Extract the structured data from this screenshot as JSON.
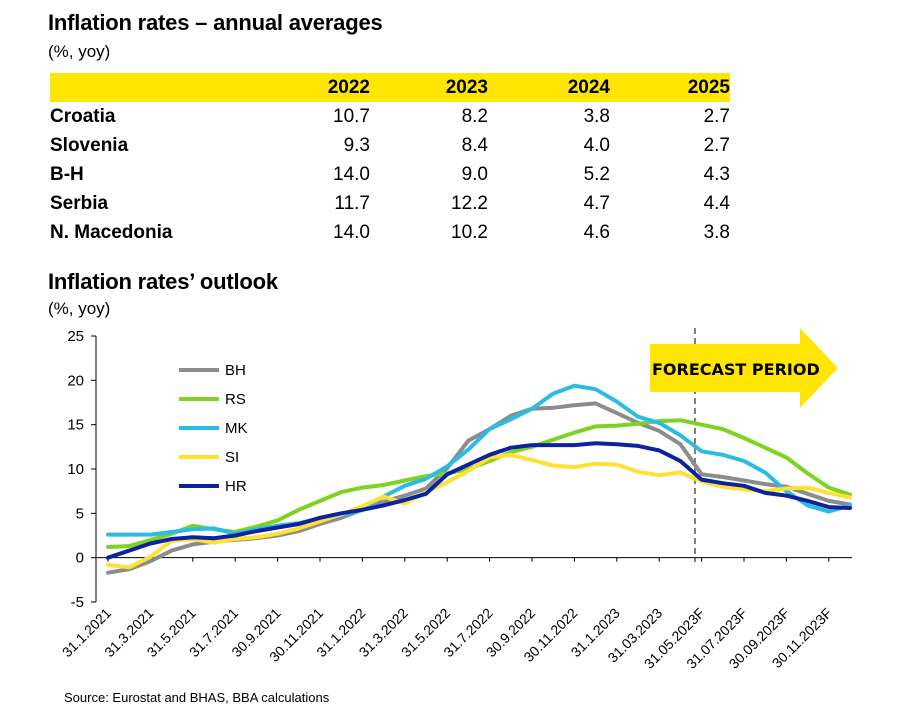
{
  "table_section": {
    "title": "Inflation rates – annual averages",
    "unit": "(%, yoy)",
    "years": [
      "2022",
      "2023",
      "2024",
      "2025"
    ],
    "rows": [
      {
        "country": "Croatia",
        "values": [
          "10.7",
          "8.2",
          "3.8",
          "2.7"
        ]
      },
      {
        "country": "Slovenia",
        "values": [
          "9.3",
          "8.4",
          "4.0",
          "2.7"
        ]
      },
      {
        "country": "B-H",
        "values": [
          "14.0",
          "9.0",
          "5.2",
          "4.3"
        ]
      },
      {
        "country": "Serbia",
        "values": [
          "11.7",
          "12.2",
          "4.7",
          "4.4"
        ]
      },
      {
        "country": "N. Macedonia",
        "values": [
          "14.0",
          "10.2",
          "4.6",
          "3.8"
        ]
      }
    ]
  },
  "chart_section": {
    "title": "Inflation rates’ outlook",
    "unit": "(%, yoy)"
  },
  "source": "Source: Eurostat and BHAS, BBA calculations",
  "chart_data": {
    "type": "line",
    "title": "Inflation rates’ outlook",
    "ylim": [
      -5,
      25
    ],
    "yticks": [
      "-5",
      "0",
      "5",
      "10",
      "15",
      "20",
      "25"
    ],
    "x_tick_labels": [
      "31.1.2021",
      "31.3.2021",
      "31.5.2021",
      "31.7.2021",
      "30.9.2021",
      "30.11.2021",
      "31.1.2022",
      "31.3.2022",
      "31.5.2022",
      "31.7.2022",
      "30.9.2022",
      "30.11.2022",
      "31.1.2023",
      "31.03.2023",
      "31.05.2023F",
      "31.07.2023F",
      "30.09.2023F",
      "30.11.2023F"
    ],
    "x_points": 36,
    "forecast_start_index": 28,
    "forecast_label": "FORECAST PERIOD",
    "legend_position": "upper-left",
    "grid": false,
    "series": [
      {
        "name": "BH",
        "color": "#8c8c8c",
        "values": [
          -1.7,
          -1.3,
          -0.4,
          0.8,
          1.5,
          1.8,
          2.0,
          2.2,
          2.5,
          3.0,
          3.8,
          4.5,
          5.4,
          6.3,
          7.0,
          7.8,
          10.1,
          13.2,
          14.5,
          16.0,
          16.8,
          16.9,
          17.2,
          17.4,
          16.3,
          15.2,
          14.3,
          12.8,
          9.4,
          9.1,
          8.7,
          8.3,
          8.0,
          7.2,
          6.4,
          6.0
        ]
      },
      {
        "name": "RS",
        "color": "#7ed321",
        "values": [
          1.2,
          1.3,
          2.0,
          2.7,
          3.6,
          3.2,
          2.9,
          3.5,
          4.2,
          5.4,
          6.4,
          7.4,
          7.9,
          8.2,
          8.7,
          9.2,
          9.5,
          10.0,
          10.9,
          11.9,
          12.5,
          13.3,
          14.1,
          14.8,
          14.9,
          15.1,
          15.4,
          15.5,
          15.0,
          14.5,
          13.5,
          12.4,
          11.3,
          9.5,
          7.9,
          7.1
        ]
      },
      {
        "name": "MK",
        "color": "#2bbce6",
        "values": [
          2.6,
          2.6,
          2.6,
          2.9,
          3.2,
          3.3,
          2.7,
          3.2,
          3.6,
          3.9,
          4.4,
          4.8,
          5.4,
          6.9,
          8.1,
          8.9,
          10.3,
          12.2,
          14.5,
          15.6,
          16.8,
          18.5,
          19.4,
          19.0,
          17.6,
          15.9,
          15.2,
          13.8,
          12.0,
          11.6,
          10.9,
          9.6,
          7.5,
          5.9,
          5.2,
          5.9
        ]
      },
      {
        "name": "SI",
        "color": "#ffe033",
        "values": [
          -0.8,
          -1.1,
          0.1,
          1.9,
          2.1,
          1.7,
          2.1,
          2.3,
          2.7,
          3.3,
          4.1,
          4.9,
          5.8,
          6.9,
          6.1,
          7.4,
          8.5,
          9.8,
          11.3,
          11.6,
          11.0,
          10.4,
          10.2,
          10.6,
          10.5,
          9.7,
          9.3,
          9.6,
          8.6,
          8.0,
          7.7,
          7.5,
          7.8,
          7.9,
          7.3,
          6.8
        ]
      },
      {
        "name": "HR",
        "color": "#0b239e",
        "values": [
          0.0,
          0.8,
          1.6,
          2.1,
          2.3,
          2.2,
          2.5,
          3.0,
          3.4,
          3.8,
          4.5,
          5.0,
          5.4,
          5.9,
          6.5,
          7.2,
          9.4,
          10.5,
          11.6,
          12.4,
          12.7,
          12.7,
          12.7,
          12.9,
          12.8,
          12.6,
          12.1,
          10.9,
          8.8,
          8.4,
          8.1,
          7.3,
          7.0,
          6.4,
          5.7,
          5.6
        ]
      }
    ]
  },
  "colors": {
    "accent_yellow": "#ffe600"
  }
}
